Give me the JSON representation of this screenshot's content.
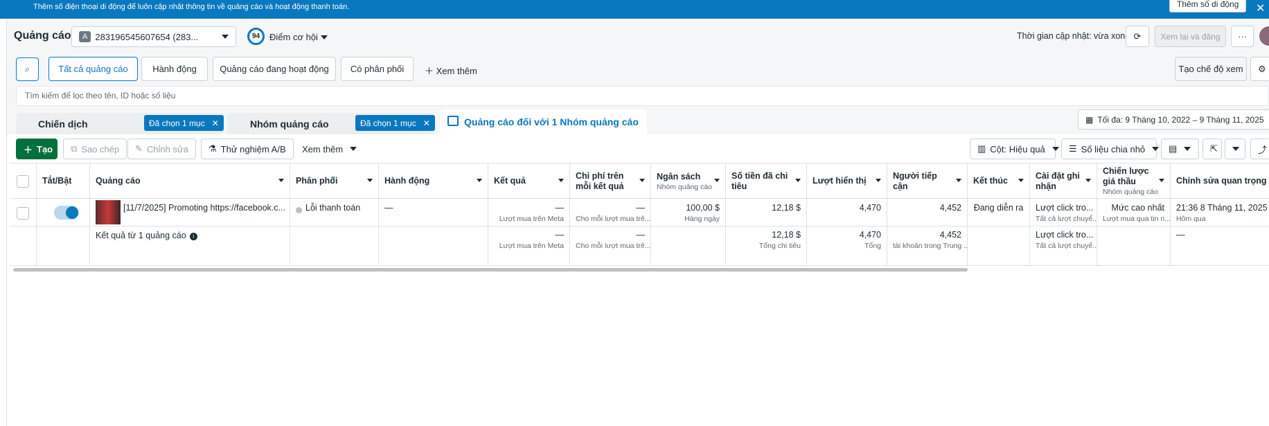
{
  "banner": {
    "text": "Thêm số điện thoại di động để luôn cập nhật thông tin về quảng cáo và hoạt động thanh toán.",
    "button": "Thêm số di động"
  },
  "header": {
    "title": "Quảng cáo",
    "account_badge": "A",
    "account": "283196545607654 (283...",
    "score": "94",
    "score_label": "Điểm cơ hội",
    "updated": "Thời gian cập nhật: vừa xong",
    "review": "Xem lại và đăng"
  },
  "filters": {
    "items": [
      "Tất cả quảng cáo",
      "Hành động",
      "Quảng cáo đang hoạt động",
      "Có phân phối"
    ],
    "more": "Xem thêm",
    "create_view": "Tạo chế độ xem"
  },
  "search": {
    "placeholder": "Tìm kiếm để lọc theo tên, ID hoặc số liệu"
  },
  "tabs": {
    "campaign": "Chiến dịch",
    "campaign_chip": "Đã chọn 1 mục",
    "adset": "Nhóm quảng cáo",
    "adset_chip": "Đã chọn 1 mục",
    "ads": "Quảng cáo đối với 1 Nhóm quảng cáo",
    "date_range": "Tối đa: 9 Tháng 10, 2022 – 9 Tháng 11, 2025"
  },
  "toolbar": {
    "create": "Tạo",
    "copy": "Sao chép",
    "edit": "Chỉnh sửa",
    "ab_test": "Thử nghiệm A/B",
    "more": "Xem thêm",
    "columns": "Cột: Hiệu quả",
    "breakdown": "Số liệu chia nhỏ"
  },
  "table": {
    "columns": [
      {
        "key": "toggle",
        "label": "Tắt/Bật"
      },
      {
        "key": "ad",
        "label": "Quảng cáo"
      },
      {
        "key": "delivery",
        "label": "Phân phối"
      },
      {
        "key": "actions",
        "label": "Hành động"
      },
      {
        "key": "results",
        "label": "Kết quả"
      },
      {
        "key": "cpr",
        "label": "Chi phí trên mỗi kết quả"
      },
      {
        "key": "budget",
        "label": "Ngân sách",
        "sub": "Nhóm quảng cáo"
      },
      {
        "key": "spent",
        "label": "Số tiền đã chi tiêu"
      },
      {
        "key": "impressions",
        "label": "Lượt hiển thị"
      },
      {
        "key": "reach",
        "label": "Người tiếp cận"
      },
      {
        "key": "ends",
        "label": "Kết thúc"
      },
      {
        "key": "attribution",
        "label": "Cài đặt ghi nhận"
      },
      {
        "key": "bid",
        "label": "Chiến lược giá thầu",
        "sub": "Nhóm quảng cáo"
      },
      {
        "key": "last_edit",
        "label": "Chỉnh sửa quan trọng gần nhất"
      }
    ],
    "rows": [
      {
        "ad": {
          "main": "[11/7/2025] Promoting https://facebook.c..."
        },
        "delivery": {
          "main": "Lỗi thanh toán"
        },
        "actions": {
          "main": "—"
        },
        "results": {
          "main": "—",
          "sub": "Lượt mua trên Meta"
        },
        "cpr": {
          "main": "—",
          "sub": "Cho mỗi lượt mua trê..."
        },
        "budget": {
          "main": "100,00 $",
          "sub": "Hàng ngày"
        },
        "spent": {
          "main": "12,18 $"
        },
        "impressions": {
          "main": "4,470"
        },
        "reach": {
          "main": "4,452"
        },
        "ends": {
          "main": "Đang diễn ra"
        },
        "attribution": {
          "main": "Lượt click tro...",
          "sub": "Tất cả lượt chuyể..."
        },
        "bid": {
          "main": "Mức cao nhất",
          "sub": "Lượt mua qua tin n..."
        },
        "last_edit": {
          "main": "21:36 8 Tháng 11, 2025",
          "sub": "Hôm qua"
        }
      },
      {
        "ad": {
          "main": "Kết quả từ 1 quảng cáo"
        },
        "results": {
          "main": "—",
          "sub": "Lượt mua trên Meta"
        },
        "cpr": {
          "main": "—",
          "sub": "Cho mỗi lượt mua trê..."
        },
        "spent": {
          "main": "12,18 $",
          "sub": "Tổng chi tiêu"
        },
        "impressions": {
          "main": "4,470",
          "sub": "Tổng"
        },
        "reach": {
          "main": "4,452",
          "sub": "tài khoản trong Trung ..."
        },
        "attribution": {
          "main": "Lượt click tro...",
          "sub": "Tất cả lượt chuyể..."
        },
        "last_edit": {
          "main": "—"
        }
      }
    ]
  }
}
